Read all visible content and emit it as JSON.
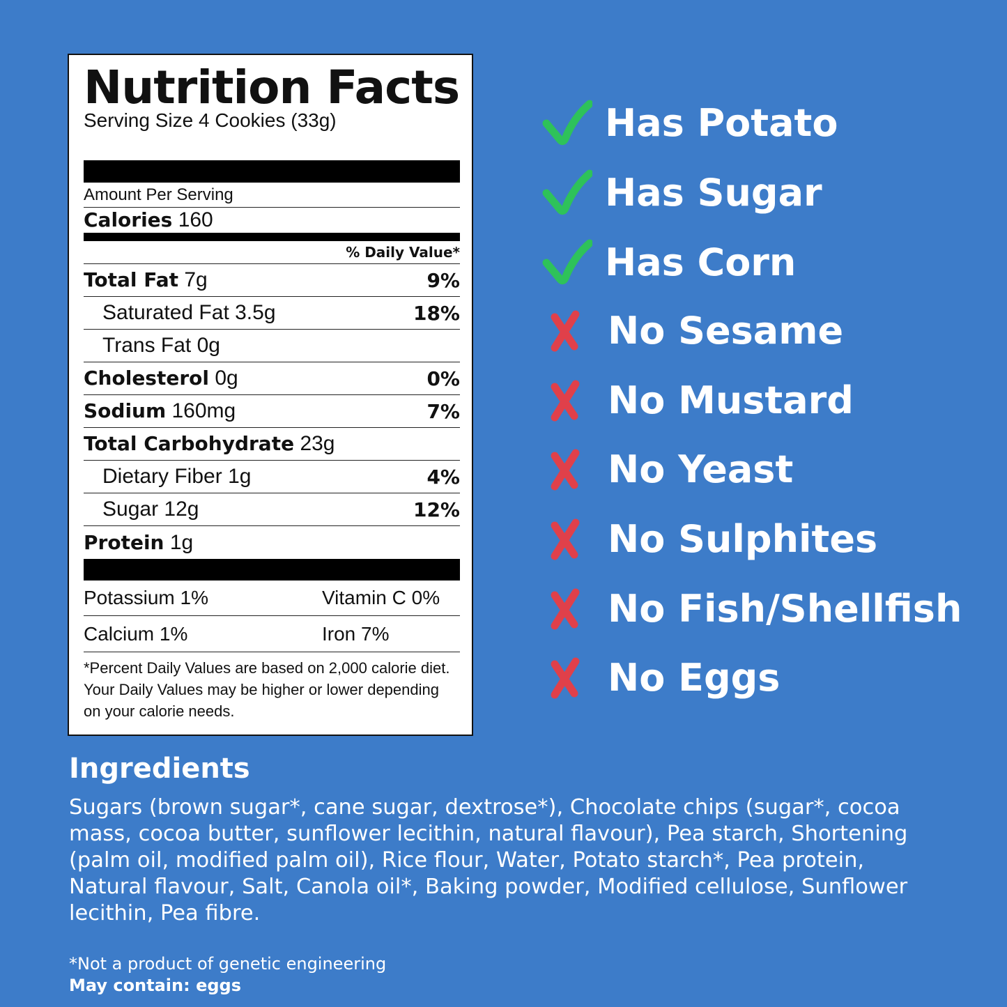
{
  "label": {
    "title": "Nutrition Facts",
    "serving": "Serving Size 4 Cookies (33g)",
    "amount_per_serving": "Amount Per Serving",
    "calories_label": "Calories",
    "calories_value": "160",
    "dv_header": "% Daily Value*",
    "rows": [
      {
        "name": "Total Fat",
        "amount": "7g",
        "dv": "9%"
      },
      {
        "name": "Saturated Fat",
        "amount": "3.5g",
        "dv": "18%"
      },
      {
        "name": "Trans Fat",
        "amount": "0g",
        "dv": ""
      },
      {
        "name": "Cholesterol",
        "amount": "0g",
        "dv": "0%"
      },
      {
        "name": "Sodium",
        "amount": "160mg",
        "dv": "7%"
      },
      {
        "name": "Total Carbohydrate",
        "amount": "23g",
        "dv": ""
      },
      {
        "name": "Dietary Fiber",
        "amount": "1g",
        "dv": "4%"
      },
      {
        "name": "Sugar",
        "amount": "12g",
        "dv": "12%"
      },
      {
        "name": "Protein",
        "amount": "1g",
        "dv": ""
      }
    ],
    "vitamins": [
      [
        "Potassium 1%",
        "Vitamin C 0%"
      ],
      [
        "Calcium 1%",
        "Iron 7%"
      ]
    ],
    "footnote": "*Percent Daily Values are based on 2,000 calorie diet. Your Daily Values may be higher or lower depending on your calorie needs."
  },
  "claims": [
    {
      "text": "Has Potato",
      "icon": "check-icon"
    },
    {
      "text": "Has Sugar",
      "icon": "check-icon"
    },
    {
      "text": "Has Corn",
      "icon": "check-icon"
    },
    {
      "text": "No Sesame",
      "icon": "x-icon"
    },
    {
      "text": "No Mustard",
      "icon": "x-icon"
    },
    {
      "text": "No Yeast",
      "icon": "x-icon"
    },
    {
      "text": "No Sulphites",
      "icon": "x-icon"
    },
    {
      "text": "No Fish/Shellfish",
      "icon": "x-icon"
    },
    {
      "text": "No Eggs",
      "icon": "x-icon"
    }
  ],
  "ingredients": {
    "heading": "Ingredients",
    "text": "Sugars (brown sugar*, cane sugar, dextrose*), Chocolate chips (sugar*, cocoa mass, cocoa butter, sunflower lecithin, natural flavour), Pea starch, Shortening (palm oil, modified palm oil), Rice flour, Water, Potato starch*, Pea protein, Natural flavour, Salt, Canola oil*, Baking powder, Modified cellulose, Sunflower lecithin, Pea fibre.",
    "gmo_note": "*Not a product of genetic engineering",
    "allergen_note": "May contain: eggs"
  },
  "colors": {
    "background": "#3d7cc9",
    "check": "#2ec25a",
    "cross": "#e0404a"
  }
}
